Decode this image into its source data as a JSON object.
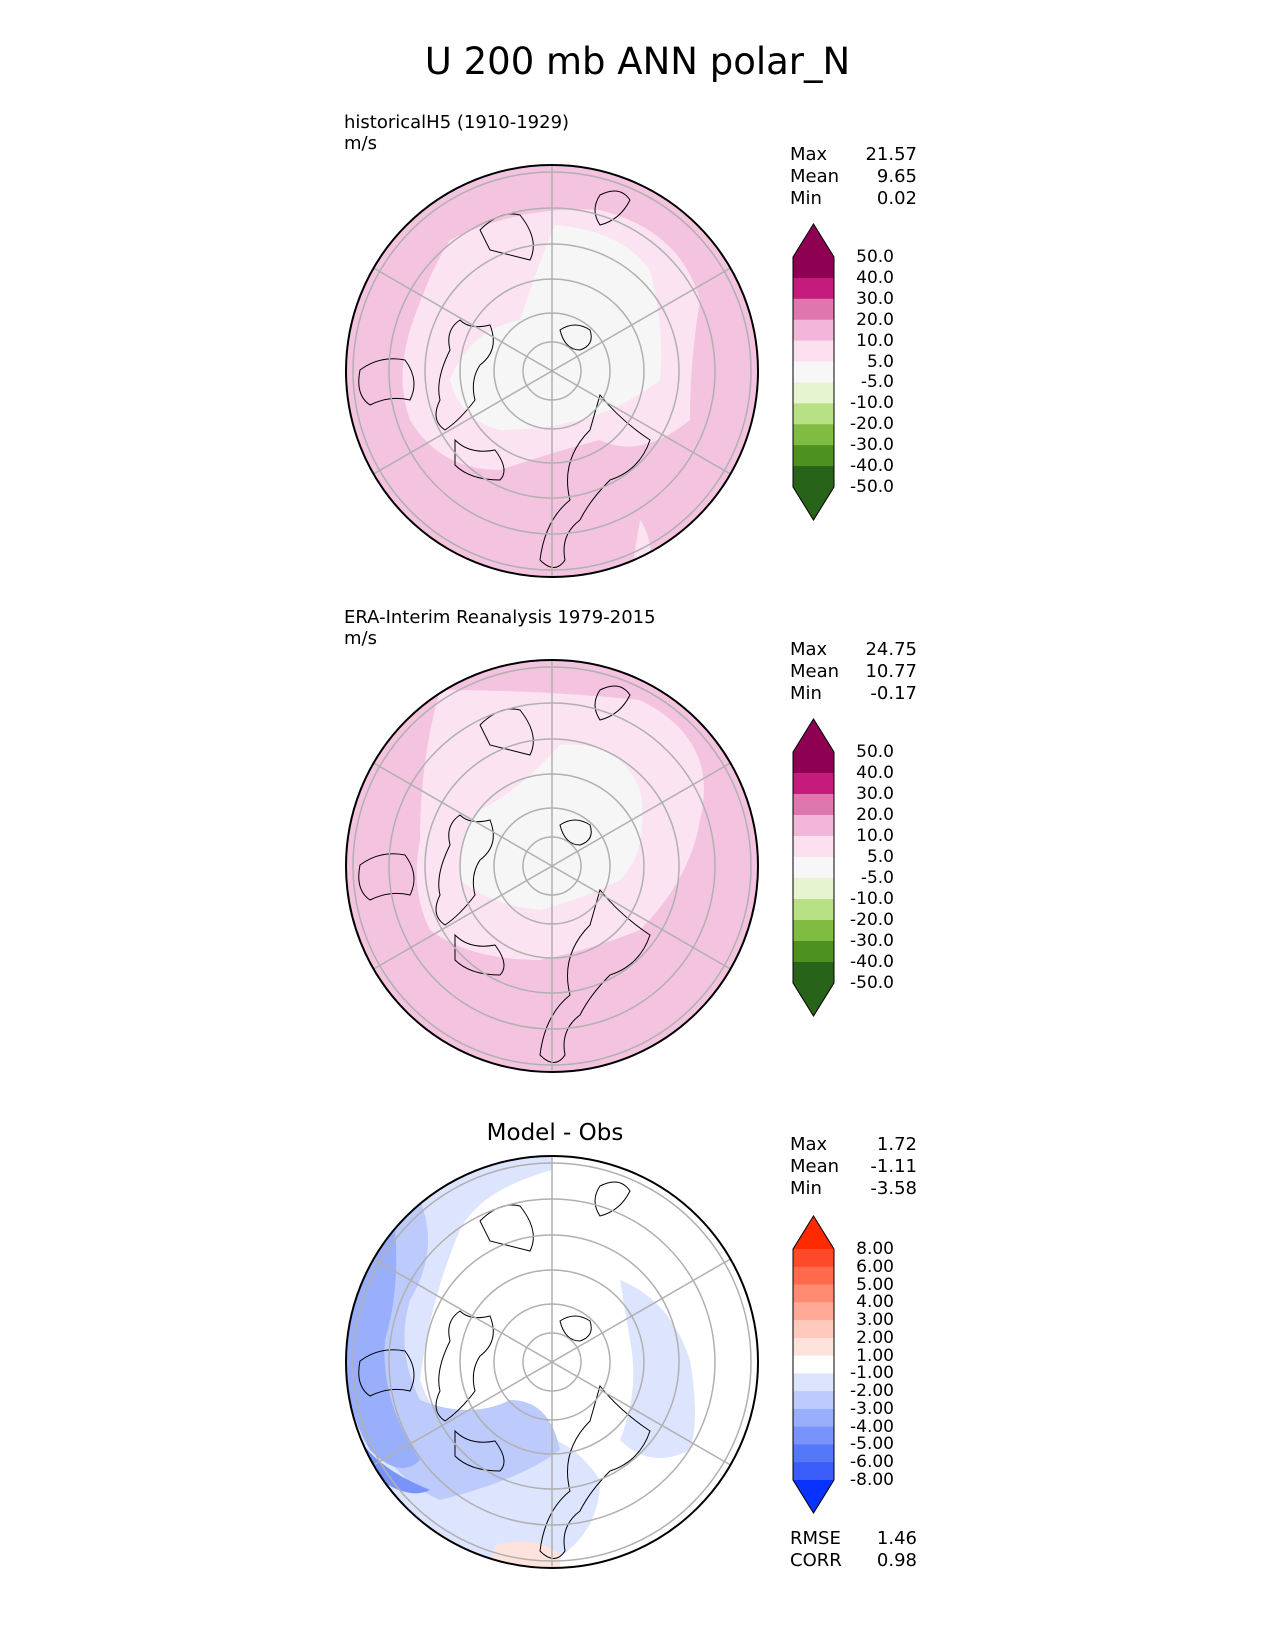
{
  "title": "U 200 mb ANN polar_N",
  "panels": [
    {
      "id": "test",
      "title": "historicalH5 (1910-1929)",
      "units": "m/s",
      "stats": [
        {
          "label": "Max",
          "value": "21.57"
        },
        {
          "label": "Mean",
          "value": "9.65"
        },
        {
          "label": "Min",
          "value": "0.02"
        }
      ],
      "colorbar": {
        "labels": [
          "50.0",
          "40.0",
          "30.0",
          "20.0",
          "10.0",
          "5.0",
          "-5.0",
          "-10.0",
          "-20.0",
          "-30.0",
          "-40.0",
          "-50.0"
        ],
        "colors": [
          "#8e0152",
          "#c51b7d",
          "#de77ae",
          "#f1b6da",
          "#fde0ef",
          "#f7f7f7",
          "#e6f5d0",
          "#b8e186",
          "#7fbc41",
          "#4d9221",
          "#276419"
        ],
        "extend_top": "#8e0152",
        "extend_bottom": "#276419"
      }
    },
    {
      "id": "reference",
      "title": "ERA-Interim Reanalysis 1979-2015",
      "units": "m/s",
      "stats": [
        {
          "label": "Max",
          "value": "24.75"
        },
        {
          "label": "Mean",
          "value": "10.77"
        },
        {
          "label": "Min",
          "value": "-0.17"
        }
      ],
      "colorbar": {
        "labels": [
          "50.0",
          "40.0",
          "30.0",
          "20.0",
          "10.0",
          "5.0",
          "-5.0",
          "-10.0",
          "-20.0",
          "-30.0",
          "-40.0",
          "-50.0"
        ],
        "colors": [
          "#8e0152",
          "#c51b7d",
          "#de77ae",
          "#f1b6da",
          "#fde0ef",
          "#f7f7f7",
          "#e6f5d0",
          "#b8e186",
          "#7fbc41",
          "#4d9221",
          "#276419"
        ],
        "extend_top": "#8e0152",
        "extend_bottom": "#276419"
      }
    },
    {
      "id": "diff",
      "title": "Model - Obs",
      "stats": [
        {
          "label": "Max",
          "value": "1.72"
        },
        {
          "label": "Mean",
          "value": "-1.11"
        },
        {
          "label": "Min",
          "value": "-3.58"
        }
      ],
      "colorbar": {
        "labels": [
          "8.00",
          "6.00",
          "5.00",
          "4.00",
          "3.00",
          "2.00",
          "1.00",
          "-1.00",
          "-2.00",
          "-3.00",
          "-4.00",
          "-5.00",
          "-6.00",
          "-8.00"
        ],
        "colors": [
          "#ff4a2a",
          "#ff6a4d",
          "#ff8a70",
          "#ffa996",
          "#ffc9bc",
          "#fde3dc",
          "#ffffff",
          "#dde4fd",
          "#bccafc",
          "#9aaffb",
          "#7894fa",
          "#5578fa",
          "#3a5df9"
        ],
        "extend_top": "#ff2a00",
        "extend_bottom": "#0a32ff"
      },
      "metrics": [
        {
          "label": "RMSE",
          "value": "1.46"
        },
        {
          "label": "CORR",
          "value": "0.98"
        }
      ]
    }
  ]
}
